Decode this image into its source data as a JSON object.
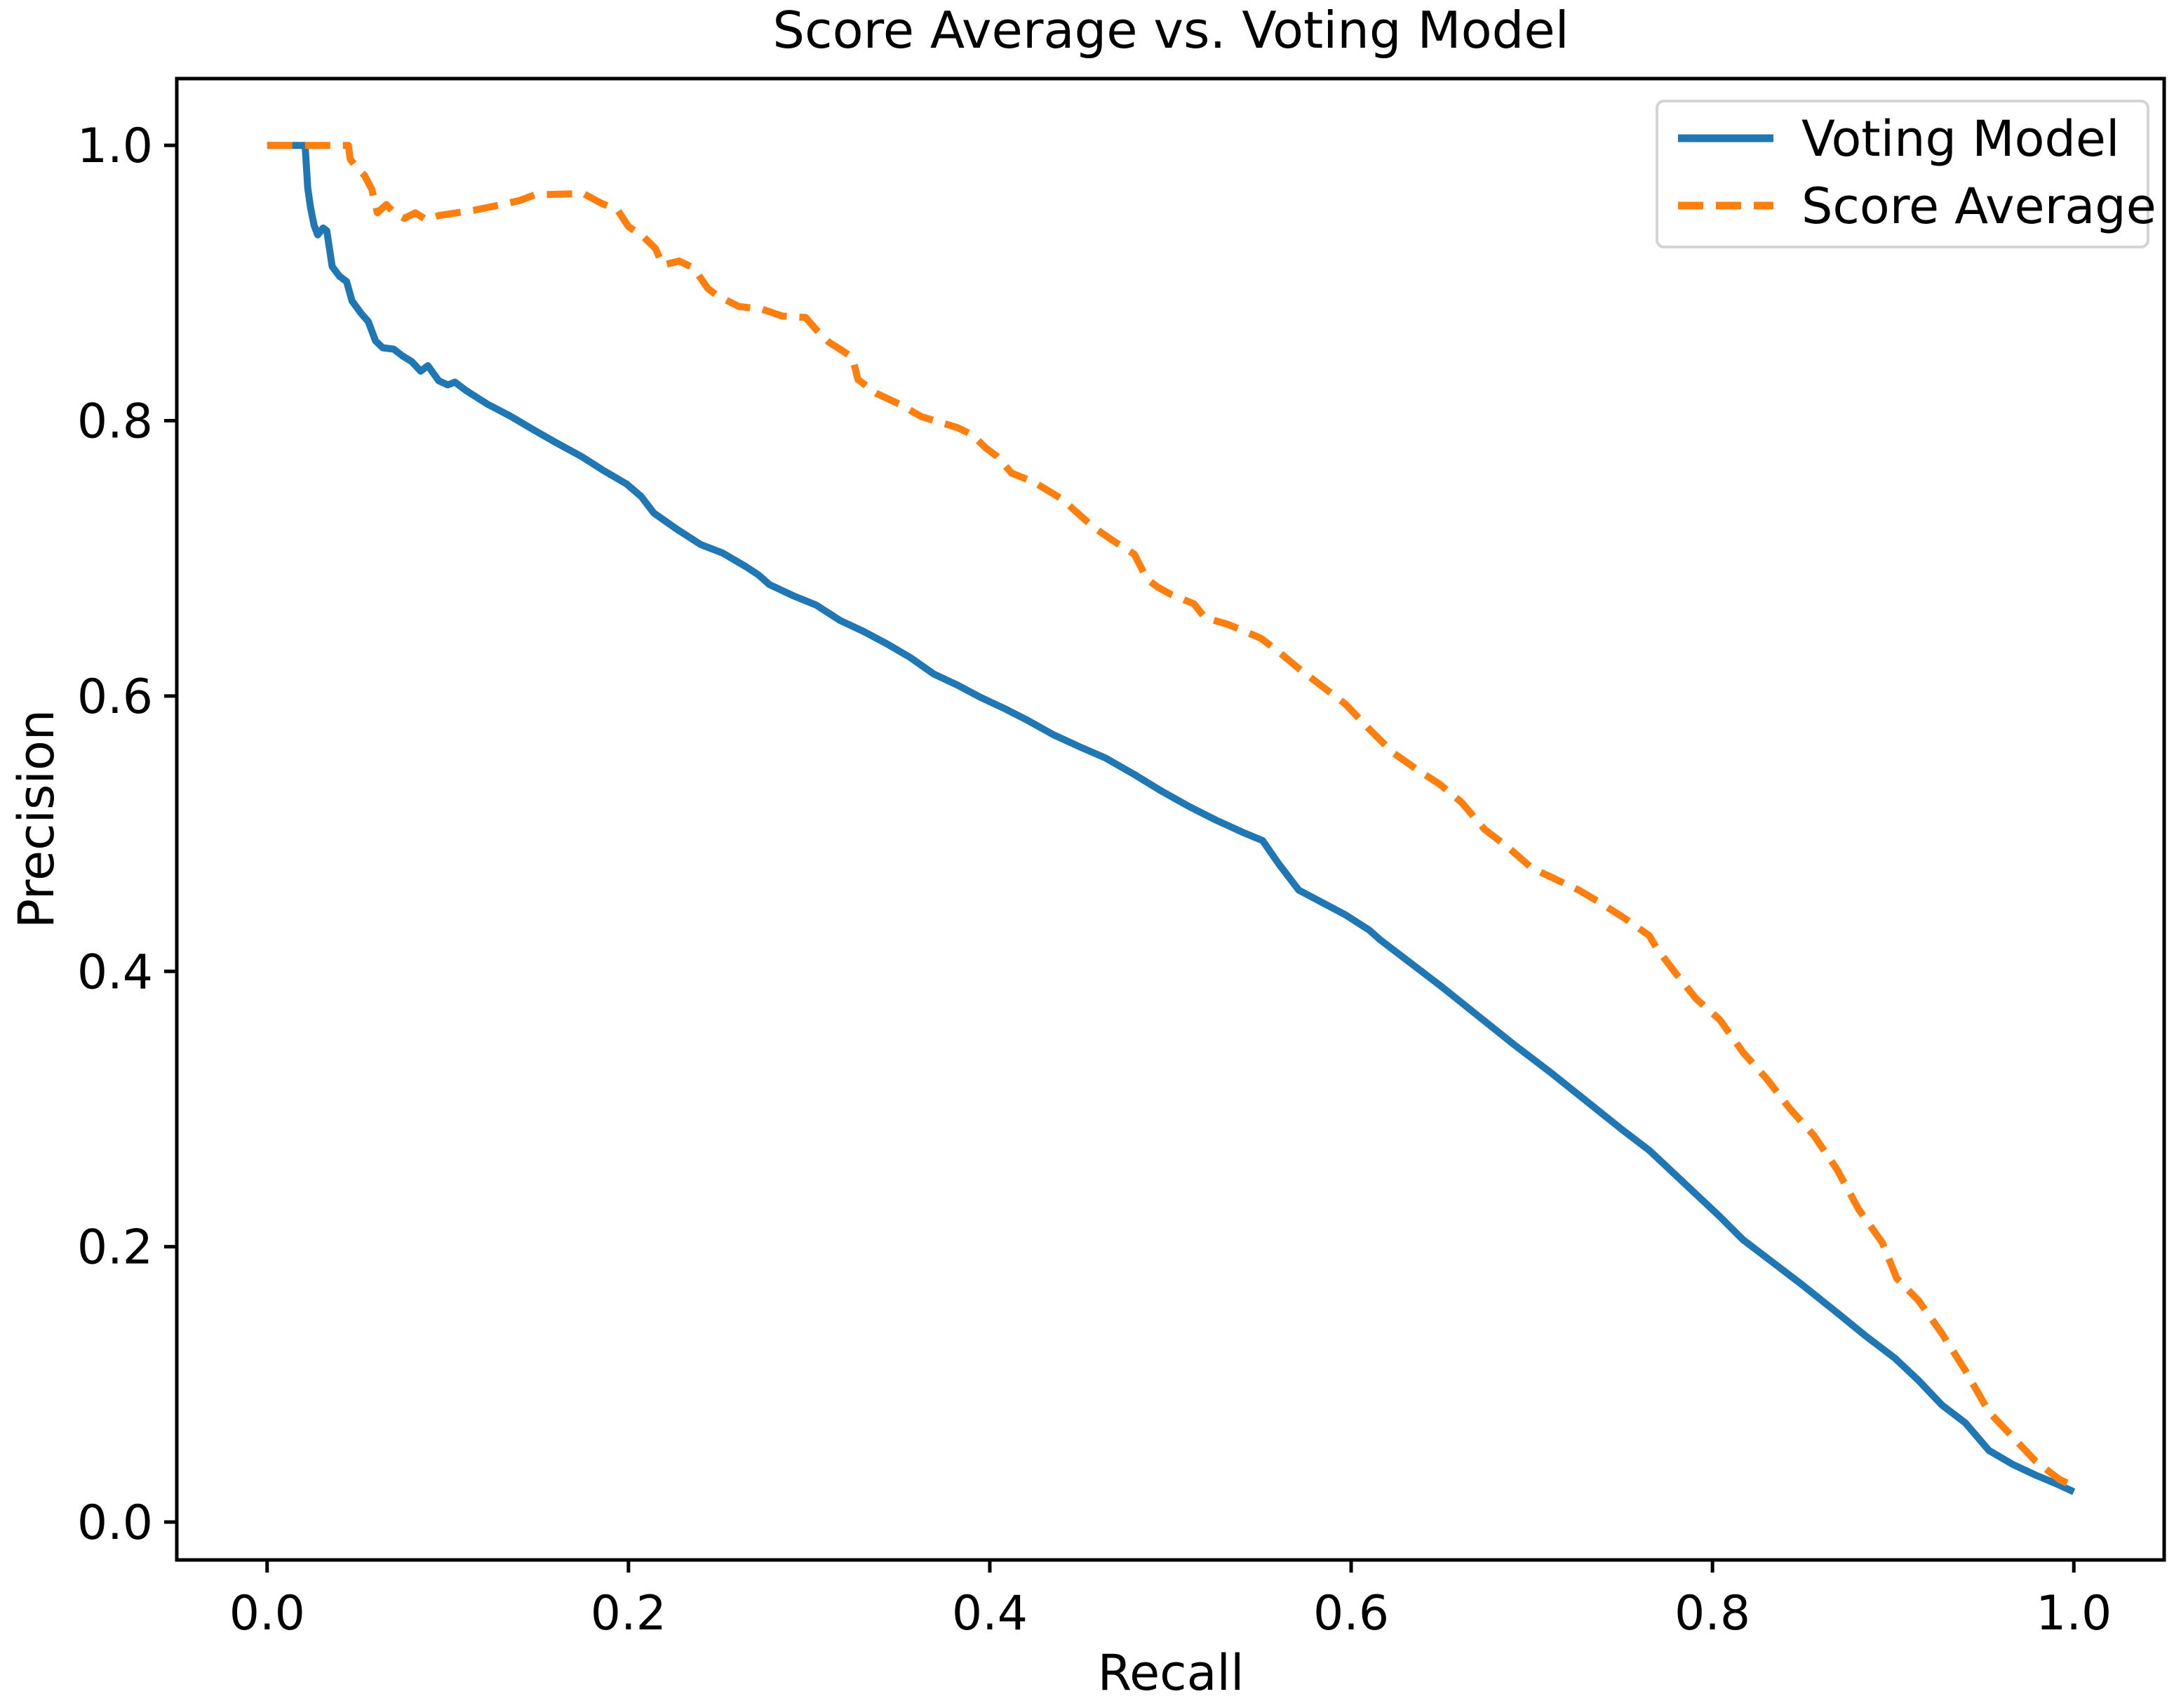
{
  "accent_colors": {
    "voting_model": "#1f77b4",
    "score_average": "#ff7f0e",
    "axis": "#000000",
    "legend_border": "#d4d4d4",
    "background": "#ffffff"
  },
  "chart_data": {
    "type": "line",
    "title": "Score Average vs. Voting Model",
    "xlabel": "Recall",
    "ylabel": "Precision",
    "x_ticks": [
      "0.0",
      "0.2",
      "0.4",
      "0.6",
      "0.8",
      "1.0"
    ],
    "y_ticks": [
      "0.0",
      "0.2",
      "0.4",
      "0.6",
      "0.8",
      "1.0"
    ],
    "x_tick_values": [
      0.0,
      0.2,
      0.4,
      0.6,
      0.8,
      1.0
    ],
    "y_tick_values": [
      0.0,
      0.2,
      0.4,
      0.6,
      0.8,
      1.0
    ],
    "xlim": [
      -0.05,
      1.05
    ],
    "ylim": [
      -0.0275,
      1.0485
    ],
    "grid": false,
    "legend_position": "upper right",
    "legend": [
      "Voting Model",
      "Score Average"
    ],
    "series": [
      {
        "name": "Voting Model",
        "color": "#1f77b4",
        "style": "solid",
        "points": [
          [
            0.0,
            1.0
          ],
          [
            0.021,
            1.0
          ],
          [
            0.0225,
            0.969
          ],
          [
            0.024,
            0.955
          ],
          [
            0.026,
            0.942
          ],
          [
            0.028,
            0.935
          ],
          [
            0.031,
            0.94
          ],
          [
            0.033,
            0.938
          ],
          [
            0.036,
            0.912
          ],
          [
            0.04,
            0.905
          ],
          [
            0.044,
            0.901
          ],
          [
            0.047,
            0.887
          ],
          [
            0.052,
            0.878
          ],
          [
            0.056,
            0.872
          ],
          [
            0.06,
            0.858
          ],
          [
            0.064,
            0.853
          ],
          [
            0.07,
            0.852
          ],
          [
            0.075,
            0.847
          ],
          [
            0.08,
            0.843
          ],
          [
            0.085,
            0.836
          ],
          [
            0.089,
            0.84
          ],
          [
            0.095,
            0.829
          ],
          [
            0.1,
            0.826
          ],
          [
            0.104,
            0.828
          ],
          [
            0.11,
            0.822
          ],
          [
            0.116,
            0.817
          ],
          [
            0.122,
            0.812
          ],
          [
            0.135,
            0.803
          ],
          [
            0.148,
            0.793
          ],
          [
            0.16,
            0.784
          ],
          [
            0.174,
            0.774
          ],
          [
            0.186,
            0.764
          ],
          [
            0.199,
            0.754
          ],
          [
            0.207,
            0.745
          ],
          [
            0.214,
            0.733
          ],
          [
            0.227,
            0.721
          ],
          [
            0.24,
            0.71
          ],
          [
            0.252,
            0.704
          ],
          [
            0.265,
            0.694
          ],
          [
            0.272,
            0.688
          ],
          [
            0.278,
            0.681
          ],
          [
            0.291,
            0.673
          ],
          [
            0.304,
            0.666
          ],
          [
            0.317,
            0.655
          ],
          [
            0.33,
            0.647
          ],
          [
            0.343,
            0.638
          ],
          [
            0.356,
            0.628
          ],
          [
            0.369,
            0.616
          ],
          [
            0.382,
            0.608
          ],
          [
            0.395,
            0.599
          ],
          [
            0.408,
            0.591
          ],
          [
            0.42,
            0.583
          ],
          [
            0.435,
            0.572
          ],
          [
            0.45,
            0.563
          ],
          [
            0.464,
            0.555
          ],
          [
            0.48,
            0.543
          ],
          [
            0.495,
            0.531
          ],
          [
            0.51,
            0.52
          ],
          [
            0.525,
            0.51
          ],
          [
            0.54,
            0.501
          ],
          [
            0.551,
            0.495
          ],
          [
            0.56,
            0.478
          ],
          [
            0.571,
            0.459
          ],
          [
            0.584,
            0.45
          ],
          [
            0.597,
            0.441
          ],
          [
            0.61,
            0.43
          ],
          [
            0.616,
            0.423
          ],
          [
            0.63,
            0.409
          ],
          [
            0.65,
            0.389
          ],
          [
            0.67,
            0.368
          ],
          [
            0.69,
            0.347
          ],
          [
            0.71,
            0.327
          ],
          [
            0.73,
            0.306
          ],
          [
            0.75,
            0.285
          ],
          [
            0.765,
            0.27
          ],
          [
            0.778,
            0.254
          ],
          [
            0.791,
            0.238
          ],
          [
            0.804,
            0.222
          ],
          [
            0.817,
            0.205
          ],
          [
            0.834,
            0.188
          ],
          [
            0.85,
            0.172
          ],
          [
            0.87,
            0.151
          ],
          [
            0.885,
            0.135
          ],
          [
            0.901,
            0.119
          ],
          [
            0.914,
            0.103
          ],
          [
            0.927,
            0.085
          ],
          [
            0.94,
            0.072
          ],
          [
            0.953,
            0.052
          ],
          [
            0.966,
            0.042
          ],
          [
            0.979,
            0.034
          ],
          [
            0.99,
            0.028
          ],
          [
            1.0,
            0.022
          ]
        ]
      },
      {
        "name": "Score Average",
        "color": "#ff7f0e",
        "style": "dashed",
        "points": [
          [
            0.0,
            1.0
          ],
          [
            0.045,
            1.0
          ],
          [
            0.046,
            0.99
          ],
          [
            0.049,
            0.985
          ],
          [
            0.054,
            0.978
          ],
          [
            0.058,
            0.968
          ],
          [
            0.061,
            0.951
          ],
          [
            0.066,
            0.957
          ],
          [
            0.071,
            0.95
          ],
          [
            0.076,
            0.947
          ],
          [
            0.082,
            0.951
          ],
          [
            0.088,
            0.946
          ],
          [
            0.095,
            0.949
          ],
          [
            0.105,
            0.951
          ],
          [
            0.115,
            0.953
          ],
          [
            0.13,
            0.957
          ],
          [
            0.14,
            0.96
          ],
          [
            0.148,
            0.964
          ],
          [
            0.175,
            0.965
          ],
          [
            0.185,
            0.958
          ],
          [
            0.194,
            0.953
          ],
          [
            0.2,
            0.941
          ],
          [
            0.208,
            0.934
          ],
          [
            0.215,
            0.925
          ],
          [
            0.219,
            0.913
          ],
          [
            0.228,
            0.916
          ],
          [
            0.236,
            0.911
          ],
          [
            0.244,
            0.896
          ],
          [
            0.249,
            0.891
          ],
          [
            0.261,
            0.883
          ],
          [
            0.274,
            0.881
          ],
          [
            0.285,
            0.876
          ],
          [
            0.298,
            0.875
          ],
          [
            0.304,
            0.866
          ],
          [
            0.311,
            0.857
          ],
          [
            0.317,
            0.852
          ],
          [
            0.324,
            0.846
          ],
          [
            0.327,
            0.83
          ],
          [
            0.337,
            0.82
          ],
          [
            0.35,
            0.812
          ],
          [
            0.362,
            0.803
          ],
          [
            0.382,
            0.795
          ],
          [
            0.39,
            0.79
          ],
          [
            0.398,
            0.78
          ],
          [
            0.404,
            0.774
          ],
          [
            0.412,
            0.762
          ],
          [
            0.425,
            0.755
          ],
          [
            0.44,
            0.743
          ],
          [
            0.457,
            0.723
          ],
          [
            0.468,
            0.713
          ],
          [
            0.48,
            0.703
          ],
          [
            0.487,
            0.685
          ],
          [
            0.493,
            0.679
          ],
          [
            0.5,
            0.674
          ],
          [
            0.513,
            0.667
          ],
          [
            0.519,
            0.657
          ],
          [
            0.532,
            0.652
          ],
          [
            0.55,
            0.642
          ],
          [
            0.56,
            0.632
          ],
          [
            0.571,
            0.62
          ],
          [
            0.584,
            0.607
          ],
          [
            0.597,
            0.594
          ],
          [
            0.61,
            0.576
          ],
          [
            0.623,
            0.559
          ],
          [
            0.636,
            0.547
          ],
          [
            0.649,
            0.536
          ],
          [
            0.661,
            0.523
          ],
          [
            0.674,
            0.503
          ],
          [
            0.687,
            0.49
          ],
          [
            0.7,
            0.475
          ],
          [
            0.713,
            0.467
          ],
          [
            0.726,
            0.459
          ],
          [
            0.739,
            0.449
          ],
          [
            0.752,
            0.438
          ],
          [
            0.765,
            0.426
          ],
          [
            0.769,
            0.417
          ],
          [
            0.78,
            0.398
          ],
          [
            0.791,
            0.38
          ],
          [
            0.804,
            0.365
          ],
          [
            0.817,
            0.341
          ],
          [
            0.83,
            0.322
          ],
          [
            0.843,
            0.3
          ],
          [
            0.856,
            0.281
          ],
          [
            0.869,
            0.256
          ],
          [
            0.881,
            0.227
          ],
          [
            0.894,
            0.203
          ],
          [
            0.902,
            0.177
          ],
          [
            0.914,
            0.161
          ],
          [
            0.927,
            0.137
          ],
          [
            0.94,
            0.11
          ],
          [
            0.953,
            0.08
          ],
          [
            0.966,
            0.062
          ],
          [
            0.979,
            0.044
          ],
          [
            0.992,
            0.031
          ],
          [
            1.0,
            0.026
          ]
        ]
      }
    ]
  }
}
